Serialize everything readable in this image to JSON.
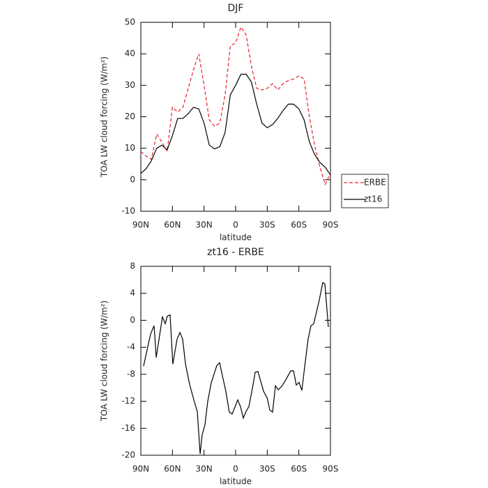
{
  "chart_data": [
    {
      "type": "line",
      "title": "DJF",
      "xlabel": "latitude",
      "ylabel": "TOA LW cloud forcing (W/m²)",
      "x": [
        90,
        85,
        80,
        75,
        70,
        65,
        60,
        55,
        50,
        45,
        40,
        35,
        30,
        25,
        20,
        15,
        10,
        5,
        0,
        -5,
        -10,
        -15,
        -20,
        -25,
        -30,
        -35,
        -40,
        -45,
        -50,
        -55,
        -60,
        -65,
        -70,
        -75,
        -80,
        -85,
        -90
      ],
      "series": [
        {
          "name": "ERBE",
          "color": "#e8202a",
          "style": "dashed",
          "values": [
            9,
            7.5,
            6.5,
            14.5,
            12,
            9,
            23,
            21.5,
            23,
            29,
            35,
            40,
            30,
            19,
            17,
            18,
            27,
            42.5,
            43.5,
            48.5,
            46,
            36,
            29,
            28.5,
            29,
            30.5,
            28.5,
            30.5,
            31.5,
            32,
            33,
            32,
            20,
            11,
            4,
            -1.5,
            2
          ]
        },
        {
          "name": "zt16",
          "color": "#000000",
          "style": "solid",
          "values": [
            2,
            3.5,
            6,
            10,
            11,
            9.5,
            14,
            19.5,
            19.5,
            21,
            23,
            22.5,
            18,
            11,
            9.8,
            10.5,
            15,
            27,
            30,
            33.5,
            33.5,
            31,
            24,
            18,
            16.5,
            17.5,
            19.5,
            22,
            24,
            24,
            22.5,
            19,
            12,
            8,
            5.5,
            4,
            1.5
          ]
        }
      ],
      "xlim": [
        90,
        -90
      ],
      "xticks": [
        {
          "value": 90,
          "label": "90N"
        },
        {
          "value": 60,
          "label": "60N"
        },
        {
          "value": 30,
          "label": "30N"
        },
        0,
        {
          "value": -30,
          "label": "30S"
        },
        {
          "value": -60,
          "label": "60S"
        },
        {
          "value": -90,
          "label": "90S"
        }
      ],
      "ylim": [
        -10,
        50
      ],
      "yticks": [
        -10,
        0,
        10,
        20,
        30,
        40,
        50
      ],
      "legend": "outside right"
    },
    {
      "type": "line",
      "title": "zt16 - ERBE",
      "xlabel": "latitude",
      "ylabel": "TOA LW cloud forcing (W/m²)",
      "x": [
        87.4,
        80.7,
        77.4,
        75.4,
        69.5,
        66.8,
        64.9,
        62.2,
        59.6,
        55.6,
        52.9,
        50.3,
        47.6,
        43.7,
        39.0,
        36.4,
        33.7,
        31.8,
        29.1,
        26.5,
        23.2,
        17.9,
        15.2,
        9.3,
        6.0,
        3.3,
        -2.0,
        -4.6,
        -7.3,
        -9.9,
        -12.6,
        -16.6,
        -18.5,
        -21.2,
        -26.5,
        -29.9,
        -32.4,
        -35.1,
        -37.8,
        -40.4,
        -43.7,
        -47.7,
        -52.3,
        -55.0,
        -57.6,
        -60.2,
        -62.9,
        -65.5,
        -68.8,
        -71.5,
        -74.1,
        -79.4,
        -82.7,
        -84.7,
        -88.0
      ],
      "series": [
        {
          "color": "#000000",
          "style": "solid",
          "values": [
            -6.8,
            -2,
            -0.8,
            -5.5,
            0.5,
            -0.5,
            0.6,
            0.8,
            -6.5,
            -2.8,
            -1.8,
            -2.8,
            -6.5,
            -9.5,
            -12.2,
            -13.5,
            -19.8,
            -17,
            -15.5,
            -12,
            -9.3,
            -6.7,
            -6.3,
            -10.5,
            -13.6,
            -13.9,
            -11.8,
            -12.8,
            -14.5,
            -13.5,
            -12.8,
            -9.5,
            -7.7,
            -7.6,
            -10.5,
            -11.5,
            -13.3,
            -13.6,
            -9.7,
            -10.3,
            -9.8,
            -8.8,
            -7.5,
            -7.5,
            -9.6,
            -9.2,
            -10.4,
            -6.9,
            -2.8,
            -0.8,
            -0.5,
            3,
            5.6,
            5.4,
            -1
          ]
        }
      ],
      "xlim": [
        90,
        -90
      ],
      "xticks": [
        {
          "value": 90,
          "label": "90N"
        },
        {
          "value": 60,
          "label": "60N"
        },
        {
          "value": 30,
          "label": "30N"
        },
        0,
        {
          "value": -30,
          "label": "30S"
        },
        {
          "value": -60,
          "label": "60S"
        },
        {
          "value": -90,
          "label": "90S"
        }
      ],
      "ylim": [
        -20,
        8
      ],
      "yticks": [
        -20,
        -16,
        -12,
        -8,
        -4,
        0,
        4,
        8
      ]
    }
  ]
}
